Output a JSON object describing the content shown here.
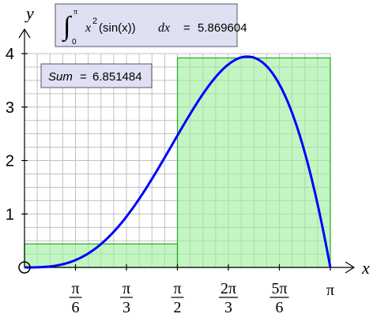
{
  "integral_box": {
    "integrand": "x",
    "integrand_exponent": "2",
    "integrand_tail": "(sin(x))",
    "differential": "dx",
    "equals": "=",
    "value": "5.869604",
    "upper_limit": "π",
    "lower_limit": "0"
  },
  "sum_box": {
    "label": "Sum",
    "equals": "=",
    "value": "6.851484"
  },
  "colors": {
    "curve": "#0000ff",
    "bars_fill": "#99ee99",
    "bars_stroke": "#22aa22",
    "grid": "#c0c0c0",
    "axes": "#000000",
    "box_fill": "#dfe0f2",
    "box_stroke": "#555566"
  },
  "chart_data": {
    "type": "area",
    "function": "x^2 sin(x)",
    "xlabel": "x",
    "ylabel": "y",
    "xlim": [
      0,
      3.1416
    ],
    "ylim": [
      0,
      4
    ],
    "grid": true,
    "x_ticks": [
      {
        "value": 0.5236,
        "num": "π",
        "den": "6"
      },
      {
        "value": 1.0472,
        "num": "π",
        "den": "3"
      },
      {
        "value": 1.5708,
        "num": "π",
        "den": "2"
      },
      {
        "value": 2.0944,
        "num": "2π",
        "den": "3"
      },
      {
        "value": 2.618,
        "num": "5π",
        "den": "6"
      },
      {
        "value": 3.1416,
        "num": "π",
        "den": ""
      }
    ],
    "y_ticks": [
      {
        "value": 1,
        "label": "1"
      },
      {
        "value": 2,
        "label": "2"
      },
      {
        "value": 3,
        "label": "3"
      },
      {
        "value": 4,
        "label": "4"
      }
    ],
    "rectangles": [
      {
        "x0": 0,
        "x1": 1.5708,
        "height": 0.44
      },
      {
        "x0": 1.5708,
        "x1": 3.1416,
        "height": 3.92
      }
    ],
    "integral_value": 5.869604,
    "sum_value": 6.851484
  }
}
